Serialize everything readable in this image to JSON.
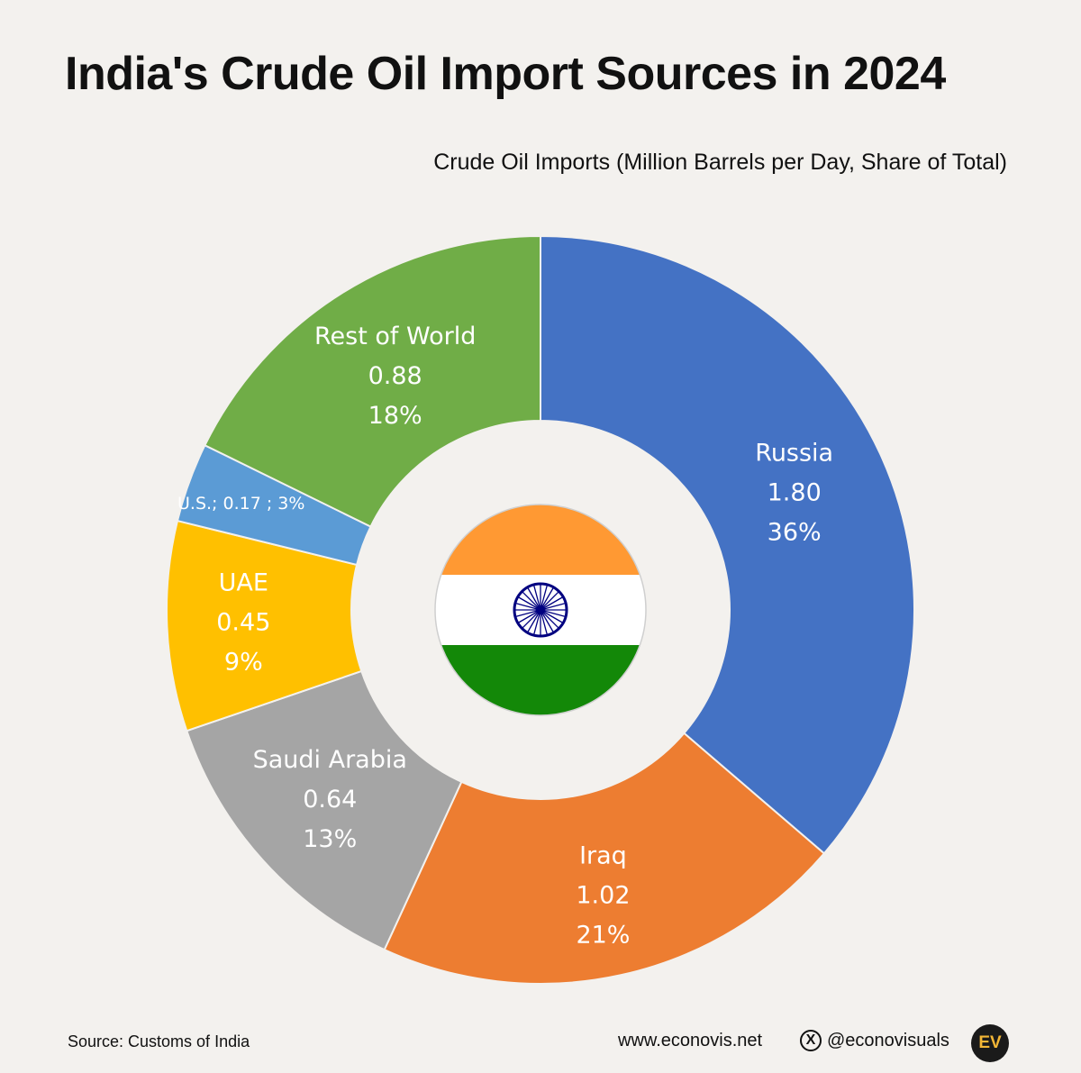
{
  "header": {
    "title": "India's Crude Oil Import Sources in 2024",
    "subtitle": "Crude Oil Imports (Million Barrels per Day, Share of Total)"
  },
  "chart_data": {
    "type": "pie",
    "title": "India's Crude Oil Import Sources in 2024",
    "subtitle": "Crude Oil Imports (Million Barrels per Day, Share of Total)",
    "style": "donut",
    "slices": [
      {
        "name": "Russia",
        "value": 1.8,
        "value_label": "1.80",
        "share_label": "36%",
        "color": "#4472c4"
      },
      {
        "name": "Iraq",
        "value": 1.02,
        "value_label": "1.02",
        "share_label": "21%",
        "color": "#ed7d31"
      },
      {
        "name": "Saudi Arabia",
        "value": 0.64,
        "value_label": "0.64",
        "share_label": "13%",
        "color": "#a5a5a5"
      },
      {
        "name": "UAE",
        "value": 0.45,
        "value_label": "0.45",
        "share_label": "9%",
        "color": "#ffc000"
      },
      {
        "name": "U.S.",
        "value": 0.17,
        "value_label": "0.17",
        "share_label": "3%",
        "color": "#5b9bd5",
        "inline_label": "U.S.;  0.17 ; 3%"
      },
      {
        "name": "Rest of World",
        "value": 0.88,
        "value_label": "0.88",
        "share_label": "18%",
        "color": "#70ad47"
      }
    ],
    "center_icon": "india-flag-icon",
    "flag_colors": {
      "saffron": "#ff9933",
      "white": "#ffffff",
      "green": "#138808",
      "chakra": "#000080"
    }
  },
  "footer": {
    "source": "Source: Customs of India",
    "website": "www.econovis.net",
    "social_icon": "x-logo-icon",
    "handle": "@econovisuals",
    "logo_text": "EV",
    "logo_colors": {
      "bg": "#1a1a1a",
      "fg": "#f2b636"
    }
  }
}
